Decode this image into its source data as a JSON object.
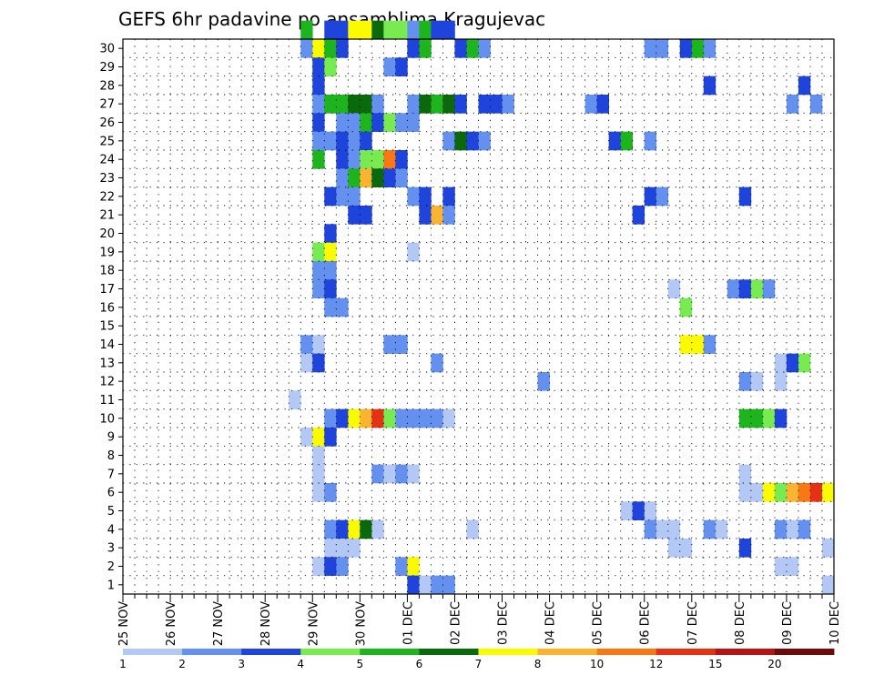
{
  "chart_data": {
    "type": "heatmap",
    "title": "GEFS 6hr padavine po ansamblima Kragujevac",
    "x_tick_labels": [
      "25 NOV",
      "26 NOV",
      "27 NOV",
      "28 NOV",
      "29 NOV",
      "30 NOV",
      "01 DEC",
      "02 DEC",
      "03 DEC",
      "04 DEC",
      "05 DEC",
      "06 DEC",
      "07 DEC",
      "08 DEC",
      "09 DEC",
      "10 DEC"
    ],
    "y_tick_labels": [
      "1",
      "2",
      "3",
      "4",
      "5",
      "6",
      "7",
      "8",
      "9",
      "10",
      "11",
      "12",
      "13",
      "14",
      "15",
      "16",
      "17",
      "18",
      "19",
      "20",
      "21",
      "22",
      "23",
      "24",
      "25",
      "26",
      "27",
      "28",
      "29",
      "30"
    ],
    "xlim": [
      0,
      60
    ],
    "ylim": [
      0,
      30
    ],
    "grid": true,
    "colorbar_labels": [
      "1",
      "2",
      "3",
      "4",
      "5",
      "6",
      "7",
      "8",
      "10",
      "12",
      "15",
      "20"
    ],
    "colorbar_colors": [
      "#b4c8f5",
      "#6490f0",
      "#1e44dc",
      "#78eb50",
      "#1eb41e",
      "#0a690a",
      "#fafa00",
      "#fab432",
      "#fa7814",
      "#e63214",
      "#b41414",
      "#6e0a0a"
    ],
    "cells": [
      [
        30,
        15,
        4
      ],
      [
        30,
        17,
        2
      ],
      [
        30,
        18,
        2
      ],
      [
        30,
        19,
        6
      ],
      [
        30,
        20,
        6
      ],
      [
        30,
        21,
        5
      ],
      [
        30,
        22,
        3
      ],
      [
        30,
        23,
        3
      ],
      [
        30,
        24,
        1
      ],
      [
        30,
        25,
        4
      ],
      [
        30,
        26,
        2
      ],
      [
        30,
        27,
        2
      ],
      [
        29,
        15,
        1
      ],
      [
        29,
        16,
        6
      ],
      [
        29,
        17,
        4
      ],
      [
        29,
        18,
        2
      ],
      [
        29,
        24,
        2
      ],
      [
        29,
        25,
        4
      ],
      [
        29,
        28,
        2
      ],
      [
        29,
        29,
        4
      ],
      [
        29,
        30,
        1
      ],
      [
        29,
        44,
        1
      ],
      [
        29,
        45,
        1
      ],
      [
        29,
        47,
        2
      ],
      [
        29,
        48,
        4
      ],
      [
        29,
        49,
        1
      ],
      [
        28,
        16,
        2
      ],
      [
        28,
        17,
        3
      ],
      [
        28,
        22,
        1
      ],
      [
        28,
        23,
        2
      ],
      [
        27,
        16,
        2
      ],
      [
        27,
        49,
        2
      ],
      [
        27,
        57,
        2
      ],
      [
        26,
        16,
        1
      ],
      [
        26,
        17,
        4
      ],
      [
        26,
        18,
        4
      ],
      [
        26,
        19,
        5
      ],
      [
        26,
        20,
        5
      ],
      [
        26,
        21,
        1
      ],
      [
        26,
        24,
        1
      ],
      [
        26,
        25,
        5
      ],
      [
        26,
        26,
        4
      ],
      [
        26,
        27,
        5
      ],
      [
        26,
        28,
        2
      ],
      [
        26,
        30,
        2
      ],
      [
        26,
        31,
        2
      ],
      [
        26,
        32,
        1
      ],
      [
        26,
        39,
        1
      ],
      [
        26,
        40,
        2
      ],
      [
        26,
        56,
        1
      ],
      [
        26,
        58,
        1
      ],
      [
        25,
        16,
        2
      ],
      [
        25,
        18,
        1
      ],
      [
        25,
        19,
        1
      ],
      [
        25,
        20,
        4
      ],
      [
        25,
        21,
        2
      ],
      [
        25,
        22,
        3
      ],
      [
        25,
        23,
        1
      ],
      [
        25,
        24,
        1
      ],
      [
        24,
        16,
        1
      ],
      [
        24,
        17,
        1
      ],
      [
        24,
        18,
        2
      ],
      [
        24,
        19,
        1
      ],
      [
        24,
        20,
        2
      ],
      [
        24,
        27,
        1
      ],
      [
        24,
        28,
        5
      ],
      [
        24,
        29,
        2
      ],
      [
        24,
        30,
        1
      ],
      [
        24,
        41,
        2
      ],
      [
        24,
        42,
        4
      ],
      [
        24,
        44,
        1
      ],
      [
        23,
        16,
        4
      ],
      [
        23,
        18,
        2
      ],
      [
        23,
        19,
        1
      ],
      [
        23,
        20,
        3
      ],
      [
        23,
        21,
        3
      ],
      [
        23,
        22,
        8
      ],
      [
        23,
        23,
        2
      ],
      [
        22,
        18,
        1
      ],
      [
        22,
        19,
        4
      ],
      [
        22,
        20,
        7
      ],
      [
        22,
        21,
        5
      ],
      [
        22,
        22,
        2
      ],
      [
        22,
        23,
        1
      ],
      [
        21,
        17,
        2
      ],
      [
        21,
        18,
        1
      ],
      [
        21,
        19,
        1
      ],
      [
        21,
        24,
        1
      ],
      [
        21,
        25,
        2
      ],
      [
        21,
        27,
        2
      ],
      [
        21,
        44,
        2
      ],
      [
        21,
        45,
        1
      ],
      [
        21,
        52,
        2
      ],
      [
        20,
        19,
        2
      ],
      [
        20,
        20,
        2
      ],
      [
        20,
        25,
        2
      ],
      [
        20,
        26,
        7
      ],
      [
        20,
        27,
        1
      ],
      [
        20,
        43,
        2
      ],
      [
        19,
        17,
        2
      ],
      [
        18,
        16,
        3
      ],
      [
        18,
        17,
        6
      ],
      [
        18,
        24,
        0
      ],
      [
        17,
        16,
        1
      ],
      [
        17,
        17,
        1
      ],
      [
        16,
        16,
        1
      ],
      [
        16,
        17,
        2
      ],
      [
        16,
        46,
        0
      ],
      [
        16,
        51,
        1
      ],
      [
        16,
        52,
        2
      ],
      [
        16,
        53,
        3
      ],
      [
        16,
        54,
        1
      ],
      [
        15,
        17,
        1
      ],
      [
        15,
        18,
        1
      ],
      [
        15,
        47,
        3
      ],
      [
        13,
        15,
        1
      ],
      [
        13,
        16,
        0
      ],
      [
        13,
        22,
        1
      ],
      [
        13,
        23,
        1
      ],
      [
        13,
        47,
        6
      ],
      [
        13,
        48,
        6
      ],
      [
        13,
        49,
        1
      ],
      [
        12,
        15,
        0
      ],
      [
        12,
        16,
        2
      ],
      [
        12,
        26,
        1
      ],
      [
        12,
        55,
        0
      ],
      [
        12,
        56,
        2
      ],
      [
        12,
        57,
        3
      ],
      [
        11,
        35,
        1
      ],
      [
        11,
        52,
        1
      ],
      [
        11,
        53,
        0
      ],
      [
        11,
        55,
        0
      ],
      [
        10,
        14,
        0
      ],
      [
        9,
        17,
        1
      ],
      [
        9,
        18,
        2
      ],
      [
        9,
        19,
        6
      ],
      [
        9,
        20,
        7
      ],
      [
        9,
        21,
        9
      ],
      [
        9,
        22,
        3
      ],
      [
        9,
        23,
        1
      ],
      [
        9,
        24,
        1
      ],
      [
        9,
        25,
        1
      ],
      [
        9,
        26,
        1
      ],
      [
        9,
        27,
        0
      ],
      [
        9,
        52,
        4
      ],
      [
        9,
        53,
        4
      ],
      [
        9,
        54,
        3
      ],
      [
        9,
        55,
        2
      ],
      [
        9,
        60,
        0
      ],
      [
        8,
        15,
        0
      ],
      [
        8,
        16,
        6
      ],
      [
        8,
        17,
        2
      ],
      [
        7,
        16,
        0
      ],
      [
        6,
        16,
        0
      ],
      [
        6,
        21,
        1
      ],
      [
        6,
        22,
        0
      ],
      [
        6,
        23,
        1
      ],
      [
        6,
        24,
        0
      ],
      [
        6,
        52,
        0
      ],
      [
        5,
        16,
        0
      ],
      [
        5,
        17,
        1
      ],
      [
        5,
        52,
        0
      ],
      [
        5,
        53,
        0
      ],
      [
        5,
        54,
        6
      ],
      [
        5,
        55,
        3
      ],
      [
        5,
        56,
        7
      ],
      [
        5,
        57,
        8
      ],
      [
        5,
        58,
        9
      ],
      [
        5,
        59,
        6
      ],
      [
        5,
        60,
        1
      ],
      [
        4,
        42,
        0
      ],
      [
        4,
        43,
        2
      ],
      [
        4,
        44,
        0
      ],
      [
        3,
        17,
        1
      ],
      [
        3,
        18,
        2
      ],
      [
        3,
        19,
        6
      ],
      [
        3,
        20,
        5
      ],
      [
        3,
        21,
        0
      ],
      [
        3,
        29,
        0
      ],
      [
        3,
        44,
        1
      ],
      [
        3,
        45,
        0
      ],
      [
        3,
        46,
        0
      ],
      [
        3,
        49,
        1
      ],
      [
        3,
        50,
        0
      ],
      [
        3,
        55,
        1
      ],
      [
        3,
        56,
        0
      ],
      [
        3,
        57,
        1
      ],
      [
        2,
        17,
        0
      ],
      [
        2,
        18,
        0
      ],
      [
        2,
        19,
        0
      ],
      [
        2,
        46,
        0
      ],
      [
        2,
        47,
        0
      ],
      [
        2,
        52,
        2
      ],
      [
        2,
        59,
        0
      ],
      [
        2,
        60,
        1
      ],
      [
        1,
        16,
        0
      ],
      [
        1,
        17,
        2
      ],
      [
        1,
        18,
        1
      ],
      [
        1,
        23,
        1
      ],
      [
        1,
        24,
        6
      ],
      [
        1,
        55,
        0
      ],
      [
        1,
        56,
        0
      ],
      [
        0,
        24,
        2
      ],
      [
        0,
        25,
        0
      ],
      [
        0,
        26,
        1
      ],
      [
        0,
        27,
        1
      ],
      [
        0,
        59,
        0
      ]
    ]
  }
}
